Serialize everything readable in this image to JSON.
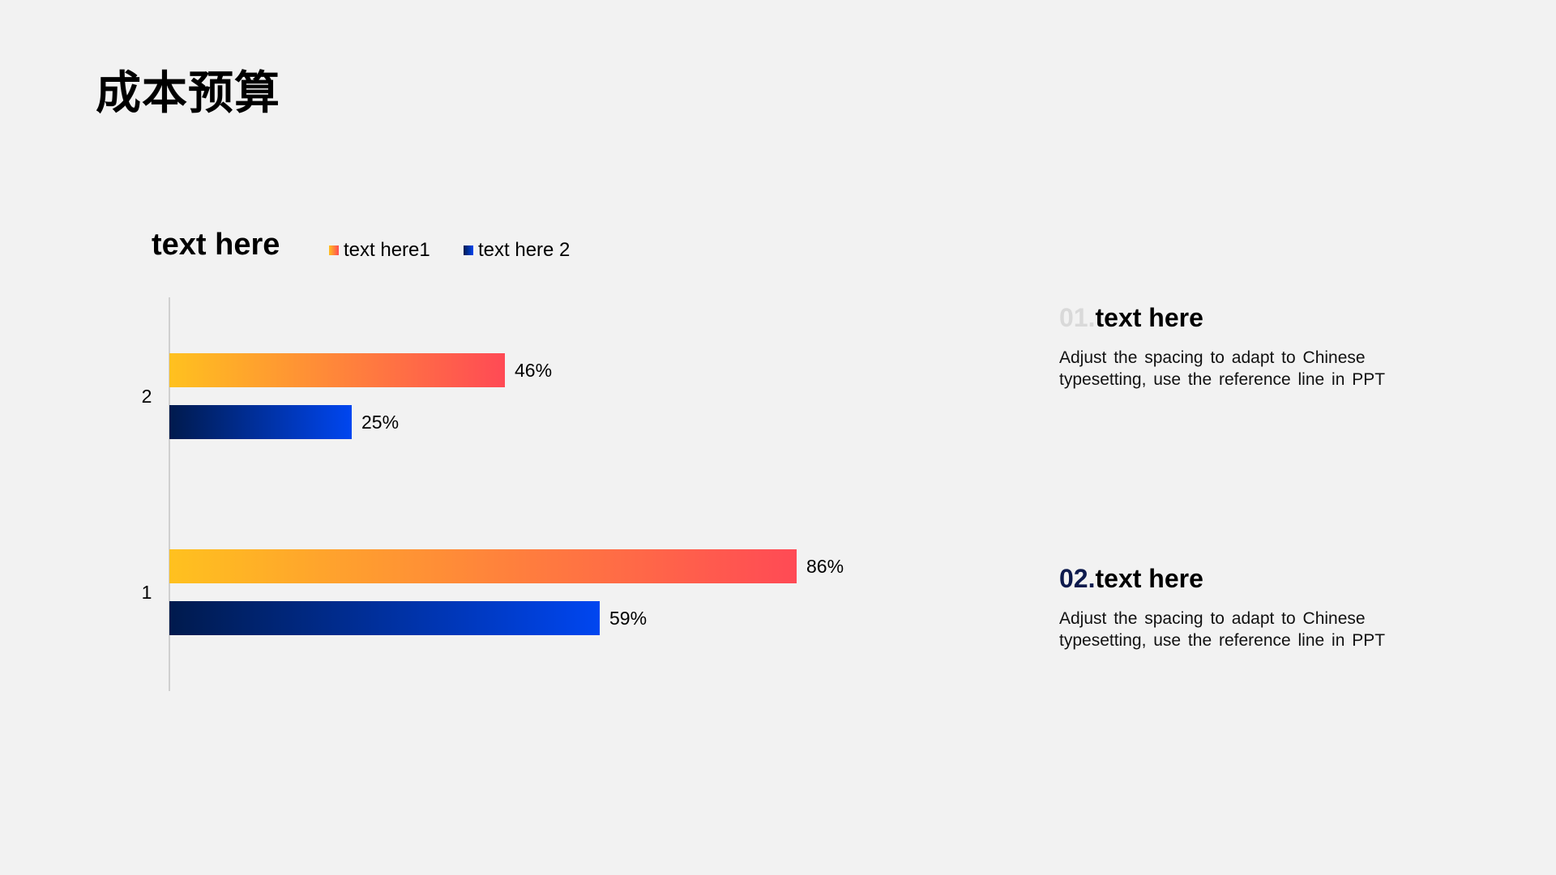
{
  "page": {
    "title": "成本预算"
  },
  "chart_data": {
    "type": "bar",
    "orientation": "horizontal",
    "title": "text here",
    "categories": [
      "2",
      "1"
    ],
    "series": [
      {
        "name": "text here1",
        "values": [
          46,
          86
        ],
        "labels": [
          "46%",
          "86%"
        ],
        "color_start": "#ffc11f",
        "color_end": "#ff4a55"
      },
      {
        "name": "text here 2",
        "values": [
          25,
          59
        ],
        "labels": [
          "25%",
          "59%"
        ],
        "color_start": "#001a4d",
        "color_end": "#0046f0"
      }
    ],
    "xlim": [
      0,
      100
    ],
    "unit": "%",
    "grid": false,
    "legend": "top"
  },
  "info": [
    {
      "number": "01.",
      "heading": "text here",
      "description": "Adjust the spacing to adapt to Chinese typesetting, use the reference line in PPT"
    },
    {
      "number": "02.",
      "heading": "text here",
      "description": "Adjust the spacing to adapt to Chinese typesetting, use the reference line in PPT"
    }
  ],
  "colors": {
    "background": "#f2f2f2",
    "axis": "#d0d0d0",
    "accent_dark": "#0d1a4d",
    "muted_number": "#d9d9d9"
  }
}
